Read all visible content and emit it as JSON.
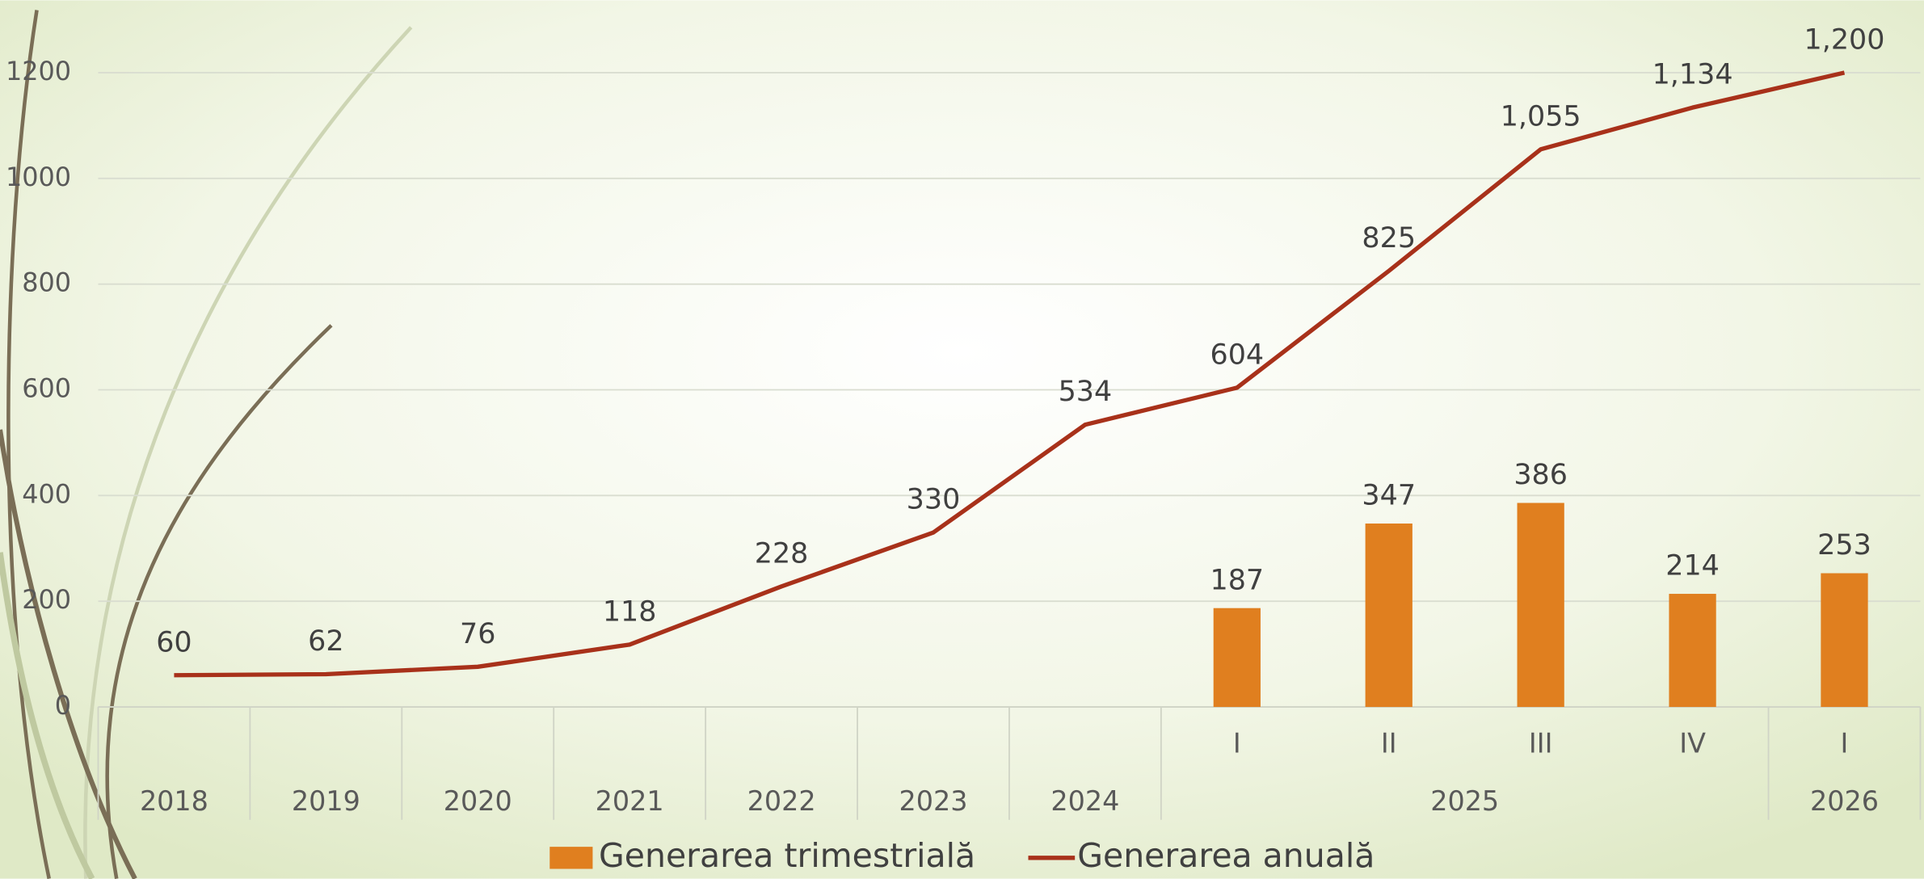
{
  "chart_data": {
    "type": "bar-line",
    "groups": [
      {
        "label": "2018",
        "categories": [
          null
        ]
      },
      {
        "label": "2019",
        "categories": [
          null
        ]
      },
      {
        "label": "2020",
        "categories": [
          null
        ]
      },
      {
        "label": "2021",
        "categories": [
          null
        ]
      },
      {
        "label": "2022",
        "categories": [
          null
        ]
      },
      {
        "label": "2023",
        "categories": [
          null
        ]
      },
      {
        "label": "2024",
        "categories": [
          null
        ]
      },
      {
        "label": "2025",
        "categories": [
          "I",
          "II",
          "III",
          "IV"
        ]
      },
      {
        "label": "2026",
        "categories": [
          "I"
        ]
      }
    ],
    "series": [
      {
        "name": "Generarea trimestrială",
        "type": "bar",
        "color": "#e07f1f",
        "values": [
          null,
          null,
          null,
          null,
          null,
          null,
          null,
          187,
          347,
          386,
          214,
          253
        ]
      },
      {
        "name": "Generarea anuală",
        "type": "line",
        "color": "#a8311a",
        "values": [
          60,
          62,
          76,
          118,
          228,
          330,
          534,
          604,
          825,
          1055,
          1134,
          1200
        ],
        "value_labels": [
          "60",
          "62",
          "76",
          "118",
          "228",
          "330",
          "534",
          "604",
          "825",
          "1,055",
          "1,134",
          "1,200"
        ]
      }
    ],
    "ylim": [
      0,
      1200
    ],
    "yticks": [
      0,
      200,
      400,
      600,
      800,
      1000,
      1200
    ],
    "grid": true,
    "legend": "bottom"
  }
}
